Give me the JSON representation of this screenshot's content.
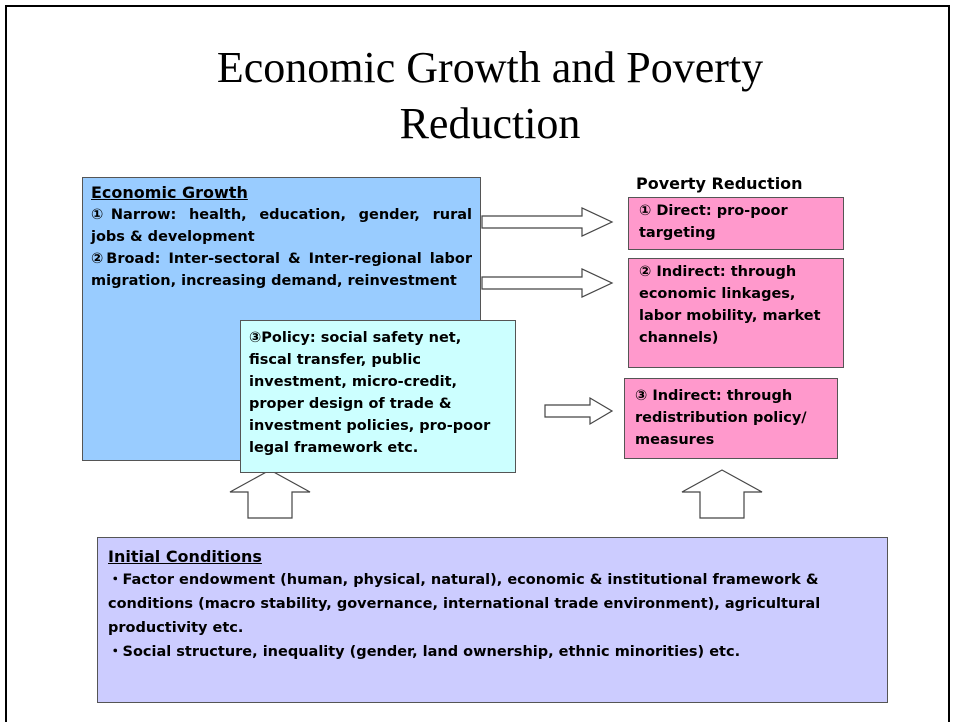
{
  "title": "Economic Growth and Poverty Reduction",
  "economic_growth": {
    "heading": "Economic Growth",
    "items": [
      "①Narrow: health, education, gender, rural jobs & development",
      "②Broad: Inter-sectoral & Inter-regional labor migration, increasing demand, reinvestment"
    ]
  },
  "policy": "③Policy: social safety net, fiscal transfer, public investment, micro-credit, proper design of trade & investment policies, pro-poor legal framework etc.",
  "poverty_reduction": {
    "heading": "Poverty Reduction",
    "items": [
      "① Direct: pro-poor targeting",
      "② Indirect: through economic linkages, labor mobility, market channels)",
      "③ Indirect: through redistribution policy/ measures"
    ]
  },
  "initial_conditions": {
    "heading": "Initial Conditions",
    "items": [
      "・Factor endowment (human, physical, natural), economic & institutional framework & conditions (macro stability, governance, international trade environment), agricultural productivity etc.",
      "・Social structure, inequality (gender, land ownership, ethnic minorities) etc."
    ]
  }
}
